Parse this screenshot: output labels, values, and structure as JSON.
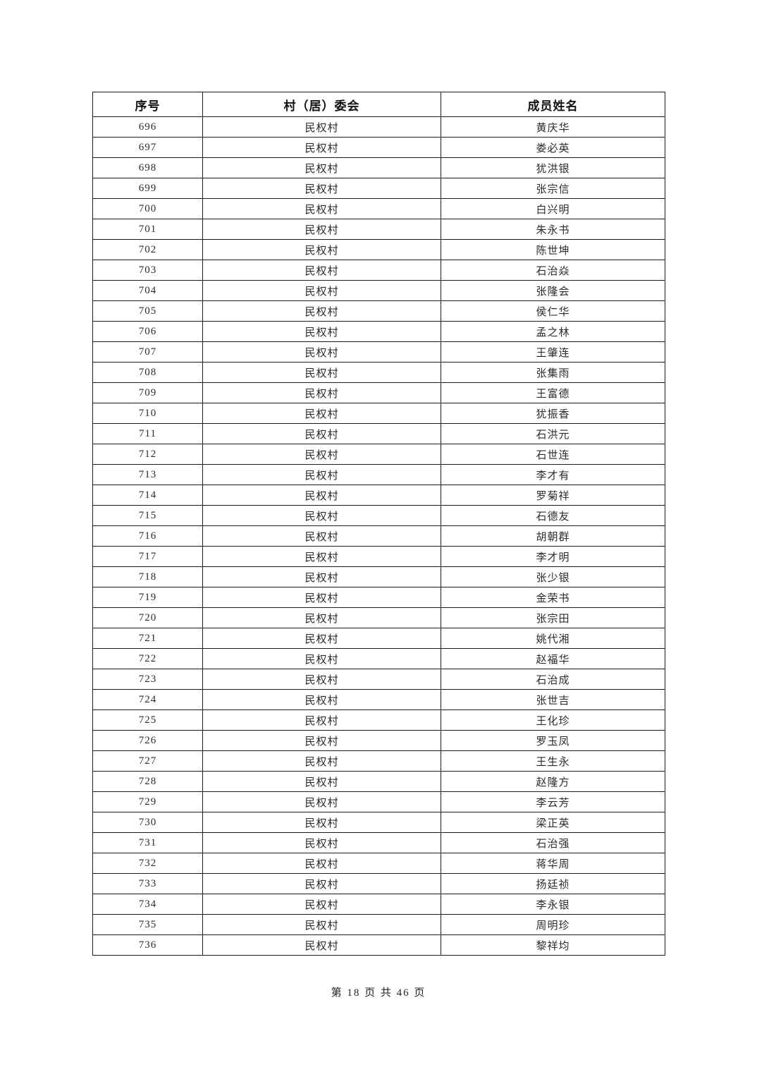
{
  "table": {
    "headers": [
      "序号",
      "村（居）委会",
      "成员姓名"
    ],
    "rows": [
      [
        "696",
        "民权村",
        "黄庆华"
      ],
      [
        "697",
        "民权村",
        "娄必英"
      ],
      [
        "698",
        "民权村",
        "犹洪银"
      ],
      [
        "699",
        "民权村",
        "张宗信"
      ],
      [
        "700",
        "民权村",
        "白兴明"
      ],
      [
        "701",
        "民权村",
        "朱永书"
      ],
      [
        "702",
        "民权村",
        "陈世坤"
      ],
      [
        "703",
        "民权村",
        "石治焱"
      ],
      [
        "704",
        "民权村",
        "张隆会"
      ],
      [
        "705",
        "民权村",
        "侯仁华"
      ],
      [
        "706",
        "民权村",
        "孟之林"
      ],
      [
        "707",
        "民权村",
        "王肇连"
      ],
      [
        "708",
        "民权村",
        "张集雨"
      ],
      [
        "709",
        "民权村",
        "王富德"
      ],
      [
        "710",
        "民权村",
        "犹振香"
      ],
      [
        "711",
        "民权村",
        "石洪元"
      ],
      [
        "712",
        "民权村",
        "石世连"
      ],
      [
        "713",
        "民权村",
        "李才有"
      ],
      [
        "714",
        "民权村",
        "罗菊祥"
      ],
      [
        "715",
        "民权村",
        "石德友"
      ],
      [
        "716",
        "民权村",
        "胡朝群"
      ],
      [
        "717",
        "民权村",
        "李才明"
      ],
      [
        "718",
        "民权村",
        "张少银"
      ],
      [
        "719",
        "民权村",
        "金荣书"
      ],
      [
        "720",
        "民权村",
        "张宗田"
      ],
      [
        "721",
        "民权村",
        "姚代湘"
      ],
      [
        "722",
        "民权村",
        "赵福华"
      ],
      [
        "723",
        "民权村",
        "石治成"
      ],
      [
        "724",
        "民权村",
        "张世吉"
      ],
      [
        "725",
        "民权村",
        "王化珍"
      ],
      [
        "726",
        "民权村",
        "罗玉凤"
      ],
      [
        "727",
        "民权村",
        "王生永"
      ],
      [
        "728",
        "民权村",
        "赵隆方"
      ],
      [
        "729",
        "民权村",
        "李云芳"
      ],
      [
        "730",
        "民权村",
        "梁正英"
      ],
      [
        "731",
        "民权村",
        "石治强"
      ],
      [
        "732",
        "民权村",
        "蒋华周"
      ],
      [
        "733",
        "民权村",
        "扬廷祯"
      ],
      [
        "734",
        "民权村",
        "李永银"
      ],
      [
        "735",
        "民权村",
        "周明珍"
      ],
      [
        "736",
        "民权村",
        "黎祥均"
      ]
    ]
  },
  "footer": {
    "text": "第 18 页 共 46 页"
  }
}
